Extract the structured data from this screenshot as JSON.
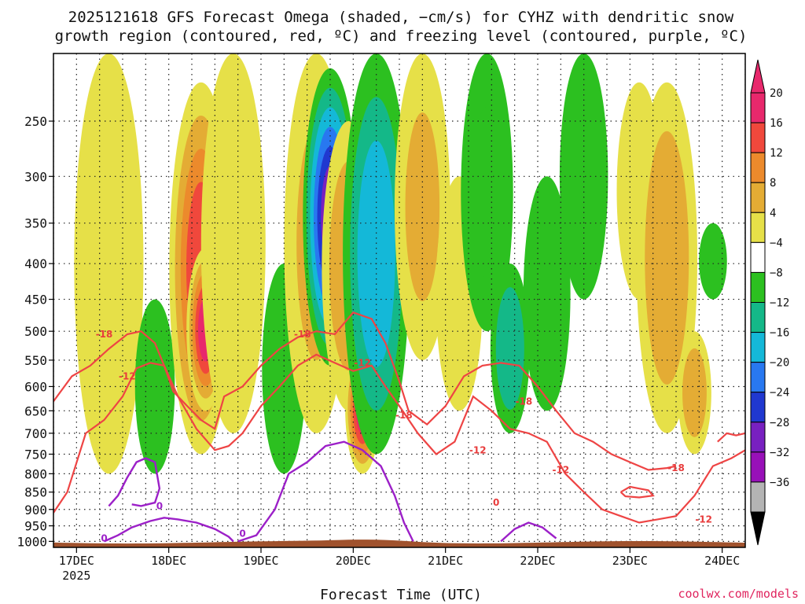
{
  "chart_data": {
    "type": "heatmap",
    "title_line1": "2025121618 GFS Forecast Omega (shaded, −cm/s) for CYHZ with dendritic snow",
    "title_line2": "growth region (contoured, red, ºC) and freezing level (contoured, purple, ºC)",
    "xlabel": "Forecast Time (UTC)",
    "credit": "coolwx.com/models",
    "x_ticks": [
      "17DEC",
      "18DEC",
      "19DEC",
      "20DEC",
      "21DEC",
      "22DEC",
      "23DEC",
      "24DEC"
    ],
    "x_year": "2025",
    "y_ticks": [
      "250",
      "300",
      "350",
      "400",
      "450",
      "500",
      "550",
      "600",
      "650",
      "700",
      "750",
      "800",
      "850",
      "900",
      "950",
      "1000"
    ],
    "y_pressure": [
      250,
      300,
      350,
      400,
      450,
      500,
      550,
      600,
      650,
      700,
      750,
      800,
      850,
      900,
      950,
      1000
    ],
    "x_range_days": [
      16.75,
      24.25
    ],
    "y_range_hpa": [
      200,
      1020
    ],
    "colorbar": {
      "labels": [
        "20",
        "16",
        "12",
        "8",
        "4",
        "−4",
        "−8",
        "−12",
        "−16",
        "−20",
        "−24",
        "−28",
        "−32",
        "−36"
      ],
      "colors": [
        "#e8286c",
        "#f0483c",
        "#ec8a2c",
        "#e4ac34",
        "#e6e048",
        "#ffffff",
        "#2cc020",
        "#14b888",
        "#14b8d8",
        "#2878f0",
        "#2038d0",
        "#7820c0",
        "#9810b8",
        "#b4b4b4"
      ],
      "top_arrow_color": "#e8286c",
      "bottom_arrow_color": "#000000"
    },
    "omega_cells": [
      {
        "day": 17.35,
        "p_top": 200,
        "p_bot": 800,
        "value": 6
      },
      {
        "day": 17.85,
        "p_top": 450,
        "p_bot": 800,
        "value": -8
      },
      {
        "day": 18.35,
        "p_top": 220,
        "p_bot": 750,
        "value": 18
      },
      {
        "day": 18.4,
        "p_top": 380,
        "p_bot": 650,
        "value": 22
      },
      {
        "day": 18.7,
        "p_top": 200,
        "p_bot": 700,
        "value": 6
      },
      {
        "day": 19.25,
        "p_top": 400,
        "p_bot": 800,
        "value": -8
      },
      {
        "day": 19.6,
        "p_top": 200,
        "p_bot": 700,
        "value": 8
      },
      {
        "day": 19.75,
        "p_top": 210,
        "p_bot": 560,
        "value": -28
      },
      {
        "day": 19.95,
        "p_top": 250,
        "p_bot": 650,
        "value": 10
      },
      {
        "day": 20.1,
        "p_top": 520,
        "p_bot": 800,
        "value": 22
      },
      {
        "day": 20.25,
        "p_top": 200,
        "p_bot": 750,
        "value": -14
      },
      {
        "day": 20.75,
        "p_top": 200,
        "p_bot": 550,
        "value": 8
      },
      {
        "day": 21.15,
        "p_top": 300,
        "p_bot": 650,
        "value": 6
      },
      {
        "day": 21.45,
        "p_top": 200,
        "p_bot": 500,
        "value": -8
      },
      {
        "day": 21.7,
        "p_top": 400,
        "p_bot": 700,
        "value": -12
      },
      {
        "day": 22.1,
        "p_top": 300,
        "p_bot": 650,
        "value": -8
      },
      {
        "day": 22.5,
        "p_top": 200,
        "p_bot": 450,
        "value": -6
      },
      {
        "day": 23.1,
        "p_top": 220,
        "p_bot": 450,
        "value": 6
      },
      {
        "day": 23.4,
        "p_top": 220,
        "p_bot": 700,
        "value": 10
      },
      {
        "day": 23.7,
        "p_top": 500,
        "p_bot": 750,
        "value": 9
      },
      {
        "day": 23.9,
        "p_top": 350,
        "p_bot": 450,
        "value": -8
      }
    ],
    "dgz_contours": [
      {
        "level": "-18",
        "days": [
          16.75,
          16.95,
          17.15,
          17.35,
          17.55,
          17.7,
          17.85,
          17.95,
          18.05,
          18.2,
          18.35,
          18.5,
          18.6,
          18.8,
          19.0,
          19.2,
          19.4,
          19.6,
          19.8,
          20.0,
          20.2,
          20.35,
          20.5,
          20.6,
          20.8,
          21.0,
          21.2,
          21.4,
          21.6,
          21.8,
          22.0,
          22.2,
          22.4,
          22.6,
          22.8,
          23.0,
          23.2,
          23.4,
          23.5
        ],
        "p": [
          630,
          580,
          560,
          530,
          505,
          500,
          520,
          560,
          610,
          640,
          670,
          690,
          620,
          600,
          560,
          530,
          510,
          500,
          505,
          470,
          480,
          520,
          590,
          650,
          680,
          640,
          580,
          560,
          555,
          560,
          600,
          650,
          700,
          720,
          750,
          770,
          790,
          785,
          780
        ]
      },
      {
        "level": "-12",
        "days": [
          16.75,
          16.9,
          17.1,
          17.3,
          17.5,
          17.65,
          17.8,
          17.95,
          18.1,
          18.3,
          18.5,
          18.65,
          18.8,
          19.0,
          19.2,
          19.4,
          19.6,
          19.8,
          20.0,
          20.2,
          20.35,
          20.5,
          20.7,
          20.9,
          21.1,
          21.3,
          21.5,
          21.7,
          21.9,
          22.1,
          22.3,
          22.5,
          22.7,
          22.9,
          23.1,
          23.3,
          23.5,
          23.7,
          23.9,
          24.1,
          24.25
        ],
        "p": [
          910,
          850,
          700,
          670,
          620,
          565,
          555,
          560,
          620,
          690,
          740,
          730,
          700,
          640,
          600,
          560,
          540,
          555,
          570,
          560,
          600,
          640,
          700,
          750,
          720,
          620,
          650,
          690,
          700,
          720,
          800,
          850,
          900,
          920,
          940,
          930,
          920,
          860,
          780,
          760,
          740
        ]
      },
      {
        "level": "-12b",
        "days": [
          23.95,
          24.05,
          24.15,
          24.25
        ],
        "p": [
          720,
          700,
          705,
          700
        ]
      },
      {
        "level": "-12c",
        "days": [
          22.9,
          23.0,
          23.1,
          23.2,
          23.25,
          23.1,
          22.95,
          22.9
        ],
        "p": [
          850,
          835,
          840,
          845,
          860,
          865,
          862,
          850
        ]
      }
    ],
    "freezing_contours": [
      {
        "level": "0",
        "days": [
          17.35,
          17.45,
          17.55,
          17.65,
          17.75,
          17.85,
          17.9,
          17.85,
          17.7,
          17.6
        ],
        "p": [
          890,
          860,
          810,
          770,
          760,
          770,
          840,
          880,
          890,
          885
        ]
      },
      {
        "level": "0",
        "days": [
          17.3,
          17.45,
          17.6,
          17.8,
          17.95,
          18.1,
          18.3,
          18.5,
          18.65,
          18.7
        ],
        "p": [
          1000,
          980,
          955,
          935,
          925,
          930,
          940,
          960,
          985,
          1000
        ]
      },
      {
        "level": "0",
        "days": [
          18.75,
          18.95,
          19.15,
          19.3,
          19.5,
          19.7,
          19.9,
          20.1,
          20.3,
          20.45,
          20.55,
          20.65
        ],
        "p": [
          1000,
          980,
          900,
          800,
          770,
          730,
          720,
          740,
          780,
          860,
          940,
          1000
        ]
      },
      {
        "level": "0",
        "days": [
          21.6,
          21.75,
          21.9,
          22.05,
          22.2
        ],
        "p": [
          1000,
          960,
          940,
          955,
          990
        ]
      }
    ],
    "contour_labels": [
      {
        "text": "-18",
        "day": 17.3,
        "p": 505,
        "color": "#e83c3c"
      },
      {
        "text": "-12",
        "day": 17.55,
        "p": 580,
        "color": "#e83c3c"
      },
      {
        "text": "-18",
        "day": 19.45,
        "p": 505,
        "color": "#e83c3c"
      },
      {
        "text": "-12",
        "day": 20.1,
        "p": 555,
        "color": "#e83c3c"
      },
      {
        "text": "-18",
        "day": 20.55,
        "p": 660,
        "color": "#e83c3c"
      },
      {
        "text": "-12",
        "day": 21.35,
        "p": 740,
        "color": "#e83c3c"
      },
      {
        "text": "-18",
        "day": 21.85,
        "p": 630,
        "color": "#e83c3c"
      },
      {
        "text": "-12",
        "day": 22.25,
        "p": 790,
        "color": "#e83c3c"
      },
      {
        "text": "-18",
        "day": 23.5,
        "p": 785,
        "color": "#e83c3c"
      },
      {
        "text": "-12",
        "day": 23.8,
        "p": 930,
        "color": "#e83c3c"
      },
      {
        "text": "0",
        "day": 17.9,
        "p": 890,
        "color": "#9c20c8"
      },
      {
        "text": "0",
        "day": 18.8,
        "p": 975,
        "color": "#9c20c8"
      },
      {
        "text": "0",
        "day": 17.3,
        "p": 990,
        "color": "#9c20c8"
      },
      {
        "text": "0",
        "day": 21.55,
        "p": 880,
        "color": "#e83c3c"
      }
    ],
    "terrain_color": "#a0522d"
  }
}
